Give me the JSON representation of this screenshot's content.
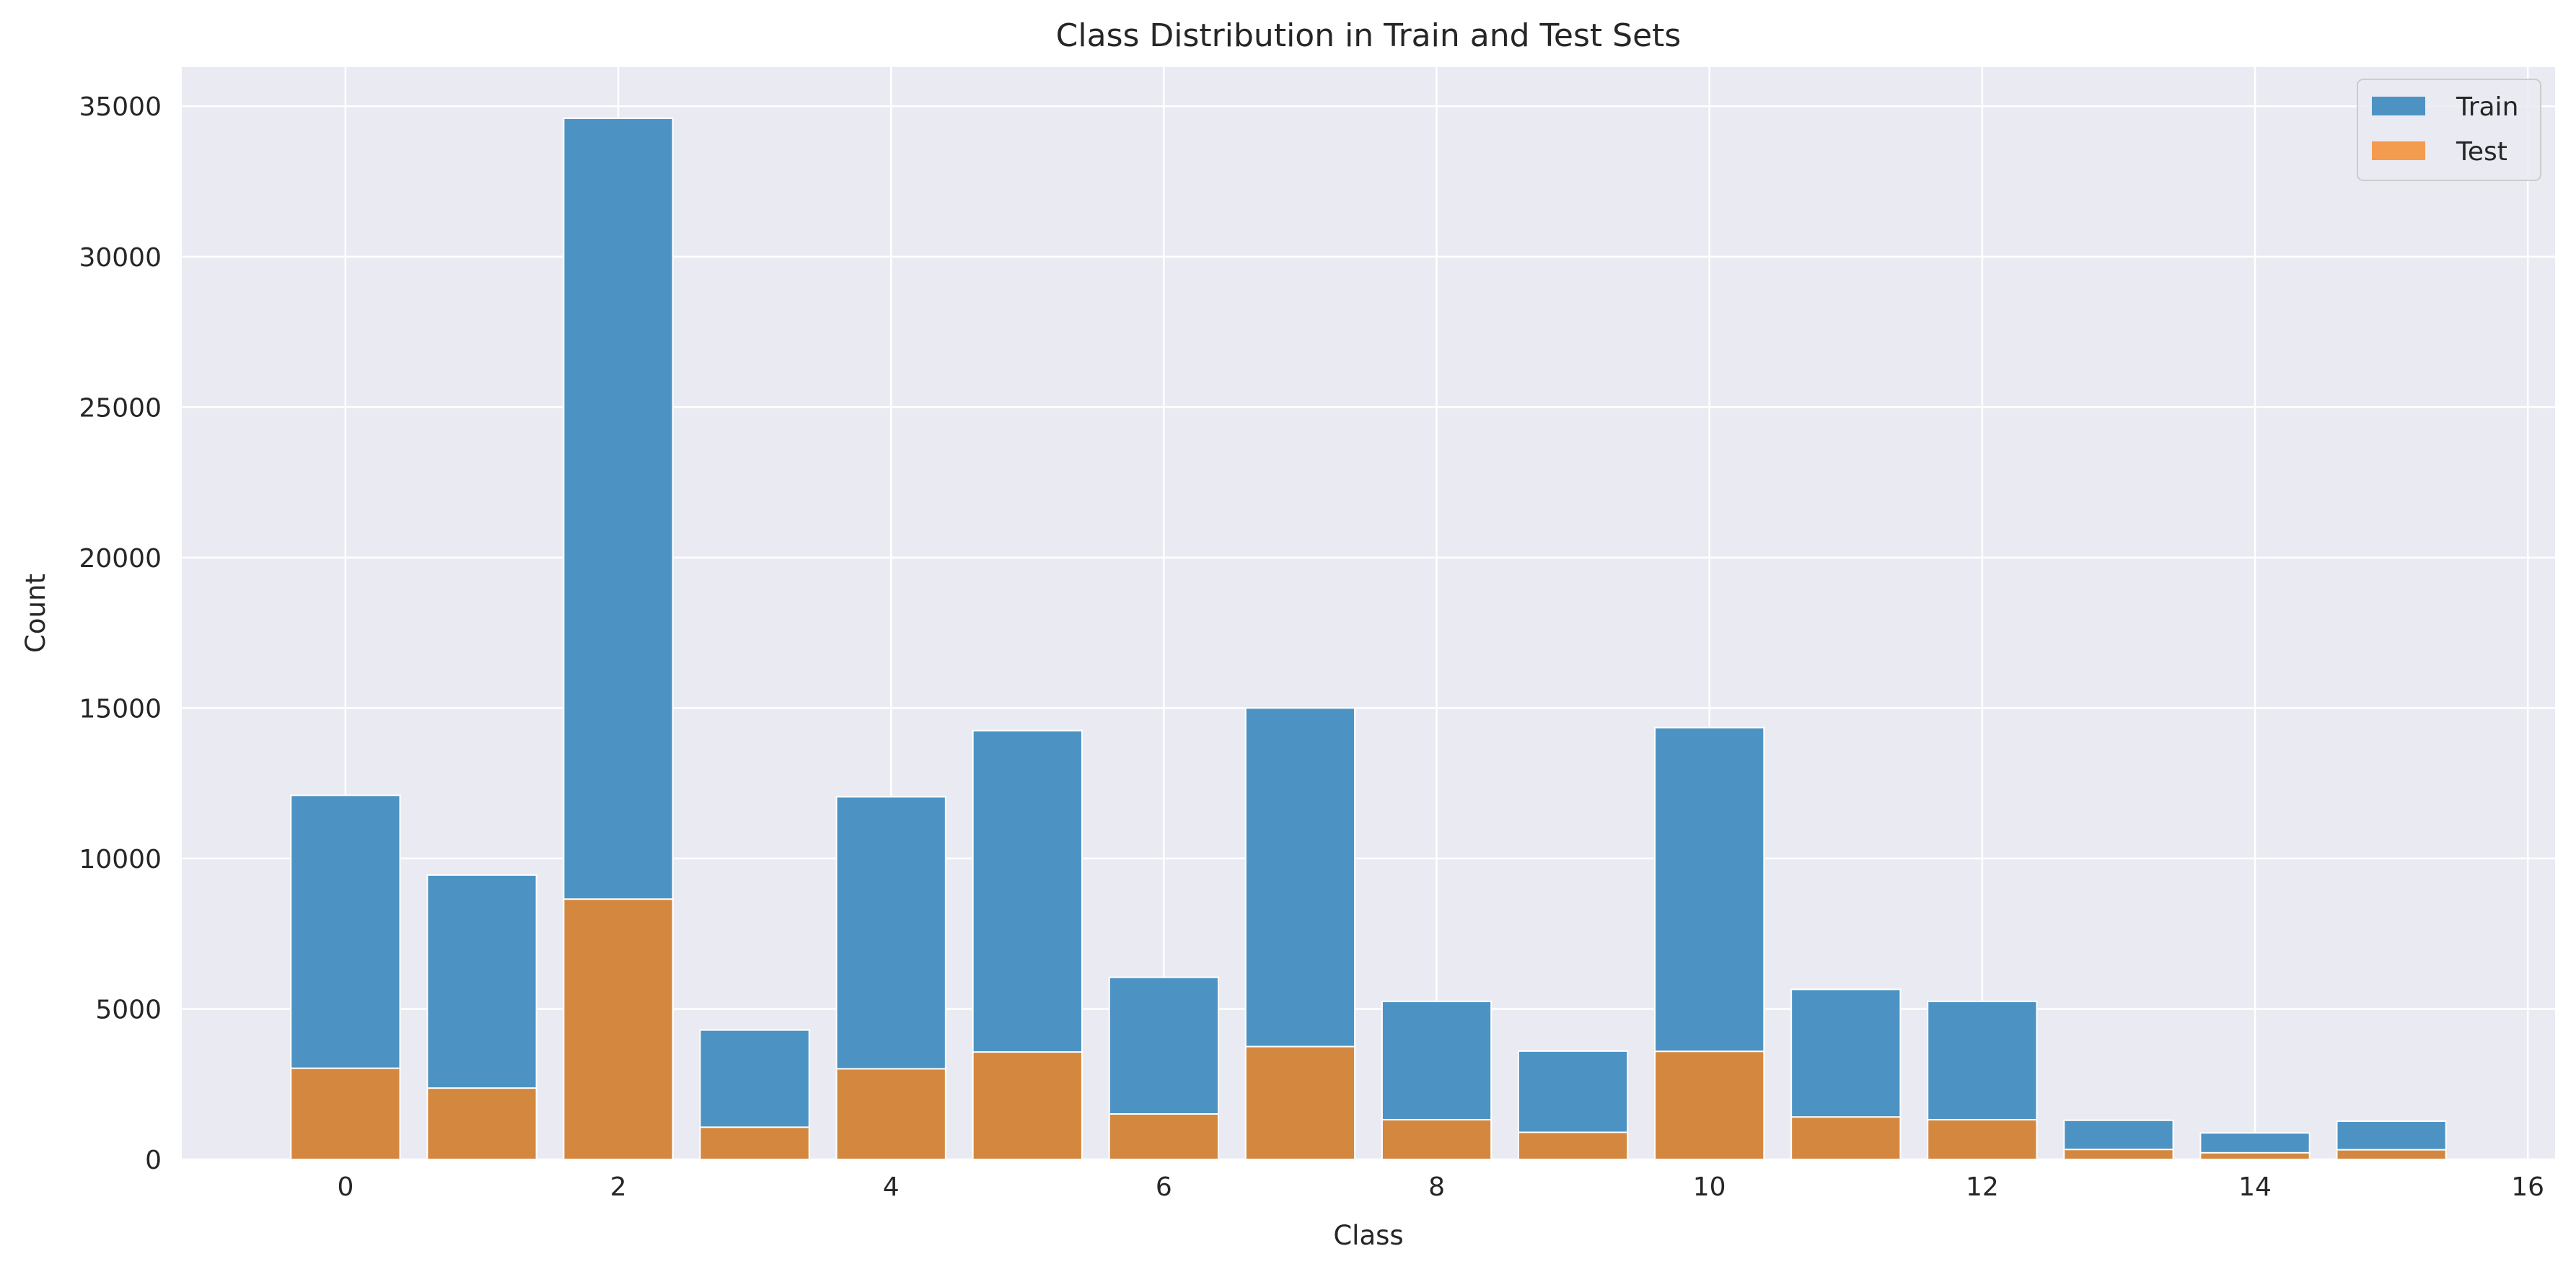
{
  "chart_data": {
    "type": "bar",
    "title": "Class Distribution in Train and Test Sets",
    "xlabel": "Class",
    "ylabel": "Count",
    "xlim": [
      -1.2,
      16.2
    ],
    "ylim": [
      0,
      36300
    ],
    "xticks": [
      0,
      2,
      4,
      6,
      8,
      10,
      12,
      14,
      16
    ],
    "yticks": [
      0,
      5000,
      10000,
      15000,
      20000,
      25000,
      30000,
      35000
    ],
    "grid": true,
    "legend_position": "top-right",
    "categories": [
      0,
      1,
      2,
      3,
      4,
      5,
      6,
      7,
      8,
      9,
      10,
      11,
      12,
      13,
      14,
      15
    ],
    "series": [
      {
        "name": "Train",
        "color": "#4c93c4",
        "values": [
          12100,
          9450,
          34600,
          4300,
          12050,
          14250,
          6050,
          15000,
          5250,
          3600,
          14350,
          5650,
          5250,
          1300,
          880,
          1270
        ]
      },
      {
        "name": "Test",
        "color": "#d4883f",
        "values": [
          3030,
          2370,
          8650,
          1070,
          3010,
          3570,
          1510,
          3750,
          1320,
          900,
          3590,
          1410,
          1320,
          330,
          220,
          320
        ]
      }
    ],
    "legend_swatch_colors": [
      "#4c93c4",
      "#f39b4f"
    ],
    "background_color": "#eaeaf2",
    "grid_color": "#ffffff"
  }
}
